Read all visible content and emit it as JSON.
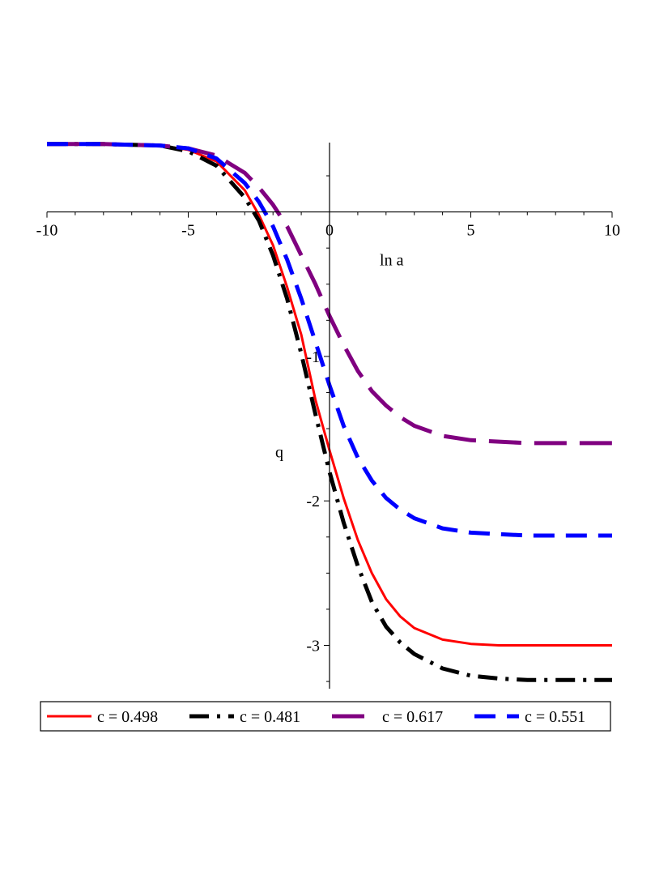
{
  "chart_data": {
    "type": "line",
    "title": "",
    "xlabel": "ln a",
    "ylabel": "q",
    "xlim": [
      -10,
      10
    ],
    "ylim": [
      -3.3,
      0.48
    ],
    "grid": false,
    "legend_position": "bottom",
    "x_ticks": [
      {
        "value": -10,
        "label": "-10"
      },
      {
        "value": -5,
        "label": "-5"
      },
      {
        "value": 0,
        "label": "0"
      },
      {
        "value": 5,
        "label": "5"
      },
      {
        "value": 10,
        "label": "10"
      }
    ],
    "y_ticks": [
      {
        "value": -1,
        "label": "-1"
      },
      {
        "value": -2,
        "label": "-2"
      },
      {
        "value": -3,
        "label": "-3"
      }
    ],
    "series": [
      {
        "name": "c = 0.498",
        "legend_label": "c = 0.498",
        "color": "#ff0000",
        "style": "solid",
        "x": [
          -10,
          -8,
          -6,
          -5,
          -4,
          -3,
          -2.5,
          -2,
          -1.5,
          -1,
          -0.5,
          0,
          0.5,
          1,
          1.5,
          2,
          2.5,
          3,
          4,
          5,
          6,
          7,
          8,
          10
        ],
        "y": [
          0.47,
          0.47,
          0.46,
          0.43,
          0.35,
          0.15,
          -0.02,
          -0.23,
          -0.52,
          -0.85,
          -1.3,
          -1.65,
          -1.98,
          -2.27,
          -2.5,
          -2.68,
          -2.8,
          -2.88,
          -2.96,
          -2.99,
          -3.0,
          -3.0,
          -3.0,
          -3.0
        ]
      },
      {
        "name": "c = 0.481",
        "legend_label": "c = 0.481",
        "color": "#000000",
        "style": "dashdot",
        "x": [
          -10,
          -8,
          -6,
          -5,
          -4,
          -3,
          -2.5,
          -2,
          -1.5,
          -1,
          -0.5,
          0,
          0.5,
          1,
          1.5,
          2,
          2.5,
          3,
          4,
          5,
          6,
          7,
          8,
          10
        ],
        "y": [
          0.47,
          0.47,
          0.46,
          0.42,
          0.32,
          0.1,
          -0.06,
          -0.3,
          -0.6,
          -0.98,
          -1.4,
          -1.8,
          -2.15,
          -2.45,
          -2.7,
          -2.87,
          -2.98,
          -3.06,
          -3.16,
          -3.21,
          -3.23,
          -3.24,
          -3.24,
          -3.24
        ]
      },
      {
        "name": "c = 0.617",
        "legend_label": "c = 0.617",
        "color": "#800080",
        "style": "longdash",
        "x": [
          -10,
          -8,
          -6,
          -5,
          -4,
          -3,
          -2.5,
          -2,
          -1.5,
          -1,
          -0.5,
          0,
          0.5,
          1,
          1.5,
          2,
          2.5,
          3,
          4,
          5,
          6,
          7,
          8,
          10
        ],
        "y": [
          0.47,
          0.47,
          0.46,
          0.44,
          0.39,
          0.27,
          0.17,
          0.05,
          -0.1,
          -0.3,
          -0.5,
          -0.72,
          -0.92,
          -1.1,
          -1.24,
          -1.34,
          -1.42,
          -1.48,
          -1.55,
          -1.58,
          -1.59,
          -1.6,
          -1.6,
          -1.6
        ]
      },
      {
        "name": "c = 0.551",
        "legend_label": "c = 0.551",
        "color": "#0000ff",
        "style": "dash",
        "x": [
          -10,
          -8,
          -6,
          -5,
          -4,
          -3,
          -2.5,
          -2,
          -1.5,
          -1,
          -0.5,
          0,
          0.5,
          1,
          1.5,
          2,
          2.5,
          3,
          4,
          5,
          6,
          7,
          8,
          10
        ],
        "y": [
          0.47,
          0.47,
          0.46,
          0.44,
          0.37,
          0.2,
          0.07,
          -0.1,
          -0.33,
          -0.6,
          -0.9,
          -1.2,
          -1.48,
          -1.7,
          -1.86,
          -1.98,
          -2.06,
          -2.12,
          -2.19,
          -2.22,
          -2.23,
          -2.24,
          -2.24,
          -2.24
        ]
      }
    ]
  }
}
